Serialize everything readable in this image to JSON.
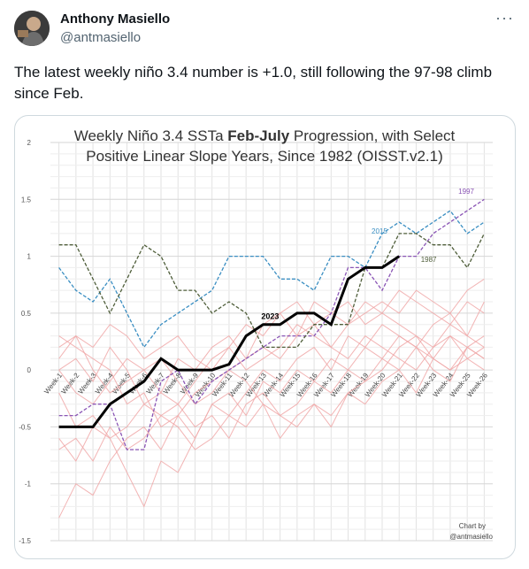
{
  "author": {
    "name": "Anthony Masiello",
    "handle": "@antmasiello",
    "avatar_icon": "avatar-photo"
  },
  "more_icon": "more-icon",
  "tweet_text": "The latest weekly niño 3.4 number is +1.0, still following the 97-98 climb since Feb.",
  "chart_data": {
    "type": "line",
    "title_line1_pre": "Weekly Niño 3.4 SSTa ",
    "title_line1_bold": "Feb-July",
    "title_line1_post": " Progression, with Select",
    "title_line2": "Positive Linear Slope Years, Since 1982 (OISST.v2.1)",
    "categories": [
      "Week-1",
      "Week-2",
      "Week-3",
      "Week-4",
      "Week-5",
      "Week-6",
      "Week-7",
      "Week-8",
      "Week-9",
      "Week-10",
      "Week-11",
      "Week-12",
      "Week-13",
      "Week-14",
      "Week-15",
      "Week-16",
      "Week-17",
      "Week-18",
      "Week-19",
      "Week-20",
      "Week-21",
      "Week-22",
      "Week-23",
      "Week-24",
      "Week-25",
      "Week-26"
    ],
    "ylim": [
      -1.5,
      2
    ],
    "yticks": [
      "2",
      "1.5",
      "1",
      "0.5",
      "0",
      "-0.5",
      "-1",
      "-1.5"
    ],
    "grid": true,
    "credit_line1": "Chart by",
    "credit_line2": "@antmasiello",
    "series": [
      {
        "name": "2023",
        "color": "#000000",
        "style": "solid-thick",
        "values": [
          -0.5,
          -0.5,
          -0.5,
          -0.3,
          -0.2,
          -0.1,
          0.1,
          0.0,
          0.0,
          0.0,
          0.05,
          0.3,
          0.4,
          0.4,
          0.5,
          0.5,
          0.4,
          0.8,
          0.9,
          0.9,
          1.0,
          null,
          null,
          null,
          null,
          null
        ]
      },
      {
        "name": "2015",
        "color": "#3a8ec2",
        "style": "dashed",
        "values": [
          0.9,
          0.7,
          0.6,
          0.8,
          0.5,
          0.2,
          0.4,
          0.5,
          0.6,
          0.7,
          1.0,
          1.0,
          1.0,
          0.8,
          0.8,
          0.7,
          1.0,
          1.0,
          0.9,
          1.2,
          1.3,
          1.2,
          1.3,
          1.4,
          1.2,
          1.3
        ]
      },
      {
        "name": "1997",
        "color": "#8a55b5",
        "style": "dashed",
        "values": [
          -0.4,
          -0.4,
          -0.3,
          -0.3,
          -0.7,
          -0.7,
          -0.1,
          0.0,
          -0.3,
          -0.1,
          0.0,
          0.1,
          0.2,
          0.3,
          0.3,
          0.3,
          0.5,
          0.9,
          0.9,
          0.7,
          1.0,
          1.0,
          1.2,
          1.3,
          1.4,
          1.5
        ]
      },
      {
        "name": "1987",
        "color": "#4f5e3a",
        "style": "dashed",
        "values": [
          1.1,
          1.1,
          0.8,
          0.5,
          0.8,
          1.1,
          1.0,
          0.7,
          0.7,
          0.5,
          0.6,
          0.5,
          0.2,
          0.2,
          0.2,
          0.4,
          0.4,
          0.4,
          0.9,
          0.9,
          1.2,
          1.2,
          1.1,
          1.1,
          0.9,
          1.2
        ]
      }
    ],
    "background_series": [
      [
        0.3,
        0.2,
        0.1,
        0.0,
        -0.3,
        -0.2,
        -0.5,
        -0.4,
        -0.2,
        -0.1,
        0.0,
        0.1,
        0.2,
        0.1,
        0.3,
        0.4,
        0.2,
        0.4,
        0.5,
        0.6,
        0.5,
        0.7,
        0.6,
        0.5,
        0.7,
        0.8
      ],
      [
        -0.6,
        -0.8,
        -0.5,
        -0.6,
        -0.9,
        -1.2,
        -0.8,
        -0.9,
        -0.6,
        -0.3,
        -0.4,
        -0.2,
        0.0,
        -0.1,
        0.1,
        0.2,
        0.0,
        0.3,
        0.2,
        0.4,
        0.3,
        0.2,
        0.4,
        0.5,
        0.3,
        0.6
      ],
      [
        0.0,
        0.1,
        -0.1,
        0.2,
        0.0,
        -0.3,
        -0.2,
        0.1,
        0.0,
        0.2,
        0.3,
        0.1,
        0.4,
        0.5,
        0.3,
        0.6,
        0.5,
        0.4,
        0.6,
        0.5,
        0.4,
        0.3,
        0.2,
        0.4,
        0.3,
        0.2
      ],
      [
        -1.3,
        -1.0,
        -1.1,
        -0.8,
        -0.6,
        -0.5,
        -0.7,
        -0.4,
        -0.6,
        -0.3,
        -0.2,
        -0.4,
        -0.1,
        -0.2,
        0.0,
        -0.1,
        0.1,
        0.0,
        0.2,
        0.1,
        0.0,
        0.2,
        0.1,
        0.3,
        0.2,
        0.1
      ],
      [
        0.2,
        0.3,
        0.0,
        -0.2,
        -0.1,
        0.0,
        0.1,
        -0.1,
        -0.3,
        -0.2,
        0.0,
        -0.1,
        -0.3,
        -0.4,
        -0.5,
        -0.3,
        -0.4,
        -0.2,
        -0.1,
        0.0,
        0.2,
        0.3,
        0.1,
        0.0,
        0.1,
        0.2
      ],
      [
        -0.2,
        -0.5,
        -0.4,
        -0.6,
        -0.5,
        -0.3,
        -0.4,
        -0.5,
        -0.7,
        -0.6,
        -0.4,
        -0.5,
        -0.3,
        -0.6,
        -0.4,
        -0.3,
        -0.5,
        -0.2,
        -0.3,
        -0.1,
        0.0,
        -0.2,
        0.1,
        0.0,
        0.2,
        0.3
      ],
      [
        0.1,
        0.3,
        0.2,
        0.4,
        0.3,
        0.1,
        0.2,
        0.3,
        0.1,
        0.0,
        0.2,
        0.4,
        0.3,
        0.5,
        0.6,
        0.4,
        0.5,
        0.6,
        0.4,
        0.5,
        0.7,
        0.6,
        0.5,
        0.4,
        0.6,
        0.5
      ],
      [
        -0.7,
        -0.6,
        -0.8,
        -0.5,
        -0.7,
        -0.6,
        -0.4,
        -0.3,
        -0.5,
        -0.4,
        -0.6,
        -0.3,
        -0.2,
        -0.4,
        -0.3,
        -0.1,
        -0.2,
        0.0,
        -0.1,
        0.1,
        0.3,
        0.2,
        0.0,
        -0.1,
        0.2,
        0.1
      ],
      [
        0.0,
        -0.2,
        -0.3,
        -0.1,
        0.1,
        0.0,
        -0.2,
        -0.3,
        -0.1,
        0.1,
        0.2,
        0.0,
        0.1,
        0.2,
        0.4,
        0.3,
        0.2,
        0.1,
        0.3,
        0.2,
        0.1,
        0.0,
        0.2,
        0.3,
        0.1,
        0.0
      ]
    ]
  }
}
